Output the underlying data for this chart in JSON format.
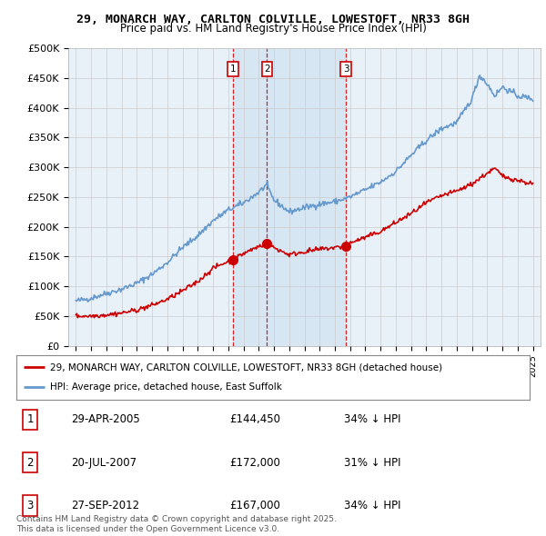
{
  "title": "29, MONARCH WAY, CARLTON COLVILLE, LOWESTOFT, NR33 8GH",
  "subtitle": "Price paid vs. HM Land Registry's House Price Index (HPI)",
  "ylim": [
    0,
    500000
  ],
  "yticks": [
    0,
    50000,
    100000,
    150000,
    200000,
    250000,
    300000,
    350000,
    400000,
    450000,
    500000
  ],
  "ytick_labels": [
    "£0",
    "£50K",
    "£100K",
    "£150K",
    "£200K",
    "£250K",
    "£300K",
    "£350K",
    "£400K",
    "£450K",
    "£500K"
  ],
  "xlim_start": 1994.5,
  "xlim_end": 2025.5,
  "transactions": [
    {
      "num": 1,
      "date": "29-APR-2005",
      "year": 2005.32,
      "price": 144450,
      "pct": "34%",
      "direction": "↓"
    },
    {
      "num": 2,
      "date": "20-JUL-2007",
      "year": 2007.55,
      "price": 172000,
      "pct": "31%",
      "direction": "↓"
    },
    {
      "num": 3,
      "date": "27-SEP-2012",
      "year": 2012.74,
      "price": 167000,
      "pct": "34%",
      "direction": "↓"
    }
  ],
  "legend_line1": "29, MONARCH WAY, CARLTON COLVILLE, LOWESTOFT, NR33 8GH (detached house)",
  "legend_line2": "HPI: Average price, detached house, East Suffolk",
  "footer": "Contains HM Land Registry data © Crown copyright and database right 2025.\nThis data is licensed under the Open Government Licence v3.0.",
  "red_color": "#cc0000",
  "blue_color": "#6699cc",
  "blue_fill": "#ddeeff",
  "background_color": "#ffffff",
  "grid_color": "#cccccc",
  "hpi_key_years": [
    1995,
    1996,
    1997,
    1998,
    1999,
    2000,
    2001,
    2002,
    2003,
    2004,
    2005,
    2006,
    2007,
    2007.5,
    2008,
    2009,
    2010,
    2011,
    2012,
    2013,
    2014,
    2015,
    2016,
    2017,
    2018,
    2019,
    2020,
    2021,
    2021.5,
    2022,
    2022.5,
    2023,
    2024,
    2025
  ],
  "hpi_key_vals": [
    75000,
    80000,
    88000,
    95000,
    105000,
    120000,
    140000,
    165000,
    185000,
    210000,
    228000,
    240000,
    258000,
    270000,
    245000,
    225000,
    232000,
    238000,
    242000,
    250000,
    262000,
    275000,
    293000,
    320000,
    345000,
    365000,
    375000,
    415000,
    455000,
    440000,
    420000,
    435000,
    420000,
    415000
  ],
  "red_key_years": [
    1995,
    1996,
    1997,
    1998,
    1999,
    2000,
    2001,
    2002,
    2003,
    2004,
    2005,
    2005.32,
    2006,
    2007,
    2007.55,
    2008,
    2009,
    2010,
    2011,
    2012,
    2012.74,
    2013,
    2014,
    2015,
    2016,
    2017,
    2018,
    2019,
    2020,
    2021,
    2022,
    2022.5,
    2023,
    2024,
    2025
  ],
  "red_key_vals": [
    50000,
    50000,
    52000,
    55000,
    60000,
    68000,
    78000,
    92000,
    108000,
    130000,
    142000,
    144450,
    155000,
    167000,
    172000,
    165000,
    153000,
    158000,
    162000,
    165000,
    167000,
    173000,
    182000,
    192000,
    207000,
    222000,
    240000,
    252000,
    260000,
    272000,
    290000,
    298000,
    285000,
    278000,
    272000
  ]
}
